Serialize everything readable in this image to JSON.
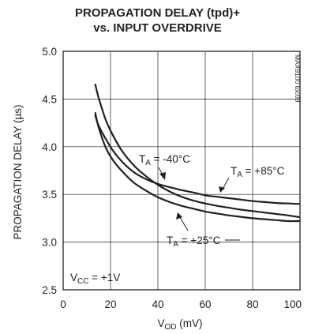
{
  "chart_data": {
    "type": "line",
    "title_line1": "PROPAGATION DELAY (tpd)+",
    "title_line2": "vs. INPUT OVERDRIVE",
    "xlabel": {
      "main": "V",
      "sub": "OD",
      "rest": " (mV)"
    },
    "ylabel": "PROPAGATION DELAY (µs)",
    "xlim": [
      0,
      100
    ],
    "ylim": [
      2.5,
      5.0
    ],
    "x_ticks": [
      "0",
      "20",
      "40",
      "60",
      "80",
      "100"
    ],
    "y_ticks": [
      "2.5",
      "3.0",
      "3.5",
      "4.0",
      "4.5",
      "5.0"
    ],
    "grid": true,
    "corner_code": "MAX9100 toc09",
    "condition": {
      "main": "V",
      "sub": "CC",
      "rest": " = +1V"
    },
    "series": [
      {
        "label_main": "T",
        "label_sub": "A",
        "label_rest": " = -40°C",
        "x": [
          13.5,
          15,
          18,
          21,
          25,
          30,
          35,
          40,
          45,
          50,
          55,
          60,
          65,
          70,
          75,
          80,
          85,
          90,
          95,
          100
        ],
        "y": [
          4.33,
          4.22,
          4.08,
          3.96,
          3.84,
          3.73,
          3.66,
          3.61,
          3.575,
          3.545,
          3.52,
          3.49,
          3.475,
          3.46,
          3.445,
          3.43,
          3.42,
          3.41,
          3.405,
          3.4
        ]
      },
      {
        "label_main": "T",
        "label_sub": "A",
        "label_rest": " = +85°C",
        "x": [
          13.5,
          15,
          18,
          21,
          25,
          30,
          35,
          40,
          45,
          50,
          55,
          60,
          65,
          70,
          75,
          80,
          85,
          90,
          95,
          100
        ],
        "y": [
          4.66,
          4.51,
          4.28,
          4.12,
          3.95,
          3.8,
          3.69,
          3.6,
          3.53,
          3.475,
          3.435,
          3.405,
          3.38,
          3.36,
          3.34,
          3.325,
          3.31,
          3.295,
          3.28,
          3.26
        ]
      },
      {
        "label_main": "T",
        "label_sub": "A",
        "label_rest": " = +25°C",
        "x": [
          13.5,
          15,
          18,
          21,
          25,
          30,
          35,
          40,
          45,
          50,
          55,
          60,
          65,
          70,
          75,
          80,
          85,
          90,
          95,
          100
        ],
        "y": [
          4.36,
          4.2,
          3.99,
          3.86,
          3.74,
          3.62,
          3.54,
          3.47,
          3.42,
          3.38,
          3.35,
          3.32,
          3.3,
          3.28,
          3.265,
          3.25,
          3.24,
          3.23,
          3.22,
          3.22
        ]
      }
    ]
  }
}
